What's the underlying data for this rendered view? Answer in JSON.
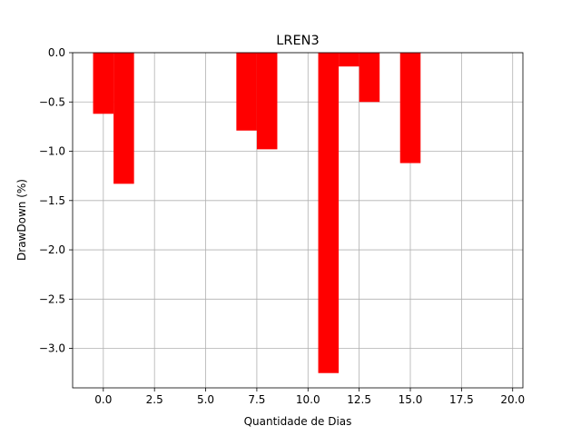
{
  "chart_data": {
    "type": "bar",
    "title": "LREN3",
    "xlabel": "Quantidade de Dias",
    "ylabel": "DrawDown (%)",
    "xlim": [
      -1.5,
      20.5
    ],
    "ylim": [
      -3.4,
      0.0
    ],
    "xticks": [
      0.0,
      2.5,
      5.0,
      7.5,
      10.0,
      12.5,
      15.0,
      17.5,
      20.0
    ],
    "xtick_labels": [
      "0.0",
      "2.5",
      "5.0",
      "7.5",
      "10.0",
      "12.5",
      "15.0",
      "17.5",
      "20.0"
    ],
    "yticks": [
      0.0,
      -0.5,
      -1.0,
      -1.5,
      -2.0,
      -2.5,
      -3.0
    ],
    "ytick_labels": [
      "0.0",
      "−0.5",
      "−1.0",
      "−1.5",
      "−2.0",
      "−2.5",
      "−3.0"
    ],
    "grid": true,
    "bar_width": 1.0,
    "bar_color": "#ff0000",
    "x": [
      0,
      1,
      7,
      8,
      11,
      12,
      13,
      15
    ],
    "values": [
      -0.62,
      -1.33,
      -0.79,
      -0.98,
      -3.25,
      -0.14,
      -0.5,
      -1.12
    ]
  }
}
